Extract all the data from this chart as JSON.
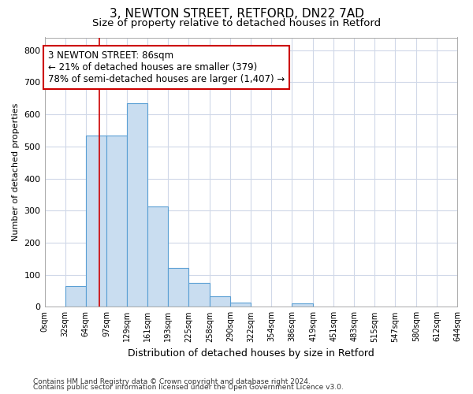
{
  "title1": "3, NEWTON STREET, RETFORD, DN22 7AD",
  "title2": "Size of property relative to detached houses in Retford",
  "xlabel": "Distribution of detached houses by size in Retford",
  "ylabel": "Number of detached properties",
  "bar_edges": [
    0,
    32,
    64,
    97,
    129,
    161,
    193,
    225,
    258,
    290,
    322,
    354,
    386,
    419,
    451,
    483,
    515,
    547,
    580,
    612,
    644
  ],
  "bar_heights": [
    0,
    65,
    535,
    535,
    635,
    313,
    120,
    75,
    32,
    13,
    0,
    0,
    10,
    0,
    0,
    0,
    0,
    0,
    0,
    0
  ],
  "bar_color": "#c9ddf0",
  "bar_edge_color": "#5a9fd4",
  "property_size": 86,
  "property_line_color": "#cc0000",
  "annotation_line1": "3 NEWTON STREET: 86sqm",
  "annotation_line2": "← 21% of detached houses are smaller (379)",
  "annotation_line3": "78% of semi-detached houses are larger (1,407) →",
  "annotation_box_color": "#ffffff",
  "annotation_border_color": "#cc0000",
  "ylim": [
    0,
    840
  ],
  "yticks": [
    0,
    100,
    200,
    300,
    400,
    500,
    600,
    700,
    800
  ],
  "footer_line1": "Contains HM Land Registry data © Crown copyright and database right 2024.",
  "footer_line2": "Contains public sector information licensed under the Open Government Licence v3.0.",
  "bg_color": "#ffffff",
  "plot_bg_color": "#ffffff",
  "grid_color": "#d0d8e8",
  "title1_fontsize": 11,
  "title2_fontsize": 9.5,
  "title1_weight": "normal",
  "annotation_fontsize": 8.5,
  "ylabel_fontsize": 8,
  "xlabel_fontsize": 9,
  "footer_fontsize": 6.5
}
